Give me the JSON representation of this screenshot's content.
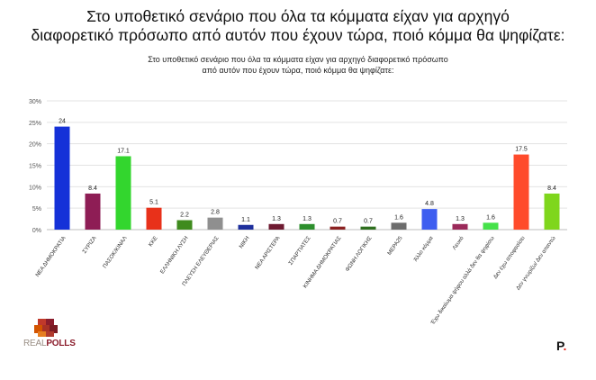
{
  "headline": {
    "line1": "Στο υποθετικό σενάριο που όλα τα κόμματα είχαν για αρχηγό",
    "line2": "διαφορετικό πρόσωπο από αυτόν που έχουν τώρα, ποιό κόμμα θα ψηφίζατε:"
  },
  "chart_data": {
    "type": "bar",
    "title_line1": "Στο υποθετικό σενάριο που όλα τα κόμματα είχαν για αρχηγό διαφορετικό πρόσωπο",
    "title_line2": "από αυτόν που έχουν τώρα, ποιό κόμμα θα ψηφίζατε:",
    "ylim": [
      0,
      30
    ],
    "yticks": [
      0,
      5,
      10,
      15,
      20,
      25,
      30
    ],
    "ytick_labels": [
      "0%",
      "5%",
      "10%",
      "15%",
      "20%",
      "25%",
      "30%"
    ],
    "grid": true,
    "categories": [
      "ΝΕΑ ΔΗΜΟΚΡΑΤΙΑ",
      "ΣΥΡΙΖΑ",
      "ΠΑΣΟΚ/ΚΙΝΑΛ",
      "ΚΚΕ",
      "ΕΛΛΗΝΙΚΗ ΛΥΣΗ",
      "ΠΛΕΥΣΗ ΕΛΕΥΘΕΡΙΑΣ",
      "ΝΙΚΗ",
      "ΝΕΑ ΑΡΙΣΤΕΡΑ",
      "ΣΠΑΡΤΙΑΤΕΣ",
      "ΚΙΝΗΜΑ ΔΗΜΟΚΡΑΤΙΑΣ",
      "ΦΩΝΗ ΛΟΓΙΚΗΣ",
      "ΜΕΡΑ25",
      "Άλλο κόμμα",
      "Λευκό",
      "Έχω δικαίωμα ψήφου αλλά δεν θα ψηφίσω",
      "Δεν έχω αποφασίσει",
      "Δεν γνωρίζω/ Δεν απαντώ"
    ],
    "values": [
      24,
      8.4,
      17.1,
      5.1,
      2.2,
      2.8,
      1.1,
      1.3,
      1.3,
      0.7,
      0.7,
      1.6,
      4.8,
      1.3,
      1.6,
      17.5,
      8.4
    ],
    "value_labels": [
      "24",
      "8.4",
      "17.1",
      "5.1",
      "2.2",
      "2.8",
      "1.1",
      "1.3",
      "1.3",
      "0.7",
      "0.7",
      "1.6",
      "4.8",
      "1.3",
      "1.6",
      "17.5",
      "8.4"
    ],
    "colors": [
      "#1531d8",
      "#8e1d55",
      "#33d62e",
      "#e8311a",
      "#3f8b1e",
      "#8f8f8f",
      "#1e2f9c",
      "#6e1a31",
      "#2d8f2d",
      "#8b2222",
      "#2f6f1f",
      "#6d6d6d",
      "#3d5df0",
      "#9b2a5a",
      "#45e24a",
      "#ff4b2b",
      "#7fd61c"
    ]
  },
  "logos": {
    "realpolls_part1": "REAL",
    "realpolls_part2": "POLLS",
    "brand_p": "P",
    "brand_dot": "."
  }
}
